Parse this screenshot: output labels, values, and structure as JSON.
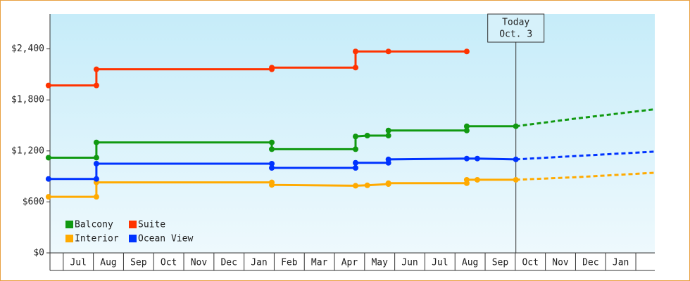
{
  "chart_data": {
    "type": "step-line",
    "categories": [
      "Jul",
      "Aug",
      "Sep",
      "Oct",
      "Nov",
      "Dec",
      "Jan",
      "Feb",
      "Mar",
      "Apr",
      "May",
      "Jun",
      "Jul",
      "Aug",
      "Sep",
      "Oct",
      "Nov",
      "Dec",
      "Jan"
    ],
    "xlim": [
      -0.44,
      19.63
    ],
    "ylim": [
      0,
      2810
    ],
    "yticks": [
      {
        "value": 0,
        "label": "$0"
      },
      {
        "value": 600,
        "label": "$600"
      },
      {
        "value": 1200,
        "label": "$1,200"
      },
      {
        "value": 1800,
        "label": "$1,800"
      },
      {
        "value": 2400,
        "label": "$2,400"
      }
    ],
    "today": {
      "x": 15.02,
      "label": [
        "Today",
        "Oct. 3"
      ]
    },
    "series": [
      {
        "name": "Balcony",
        "color": "#119911",
        "x": [
          -0.49,
          1.1,
          1.1,
          6.92,
          6.92,
          9.7,
          9.7,
          10.09,
          10.79,
          10.79,
          13.39,
          13.39,
          15.02
        ],
        "values": [
          1120,
          1120,
          1300,
          1300,
          1220,
          1220,
          1370,
          1380,
          1380,
          1440,
          1440,
          1490,
          1490
        ],
        "projection": {
          "x": [
            15.02,
            17.0,
            19.63
          ],
          "values": [
            1490,
            1580,
            1690
          ]
        }
      },
      {
        "name": "Suite",
        "color": "#ff3300",
        "x": [
          -0.49,
          1.1,
          1.1,
          6.92,
          6.92,
          9.7,
          9.7,
          10.79,
          13.39
        ],
        "values": [
          1970,
          1970,
          2160,
          2160,
          2180,
          2180,
          2370,
          2370,
          2370
        ]
      },
      {
        "name": "Interior",
        "color": "#ffaa00",
        "x": [
          -0.49,
          1.1,
          1.1,
          6.92,
          6.92,
          9.7,
          10.09,
          10.79,
          10.79,
          13.39,
          13.39,
          13.74,
          15.02
        ],
        "values": [
          660,
          660,
          830,
          830,
          800,
          790,
          795,
          810,
          820,
          820,
          860,
          860,
          860
        ],
        "projection": {
          "x": [
            15.02,
            17.0,
            19.63
          ],
          "values": [
            860,
            890,
            943
          ]
        }
      },
      {
        "name": "Ocean View",
        "color": "#0033ff",
        "x": [
          -0.49,
          1.1,
          1.1,
          6.92,
          6.92,
          9.7,
          9.7,
          10.79,
          10.79,
          13.39,
          13.74,
          15.02
        ],
        "values": [
          870,
          870,
          1050,
          1050,
          1000,
          1000,
          1060,
          1060,
          1100,
          1110,
          1110,
          1100
        ],
        "projection": {
          "x": [
            15.02,
            17.0,
            19.63
          ],
          "values": [
            1100,
            1140,
            1192
          ]
        }
      }
    ]
  }
}
